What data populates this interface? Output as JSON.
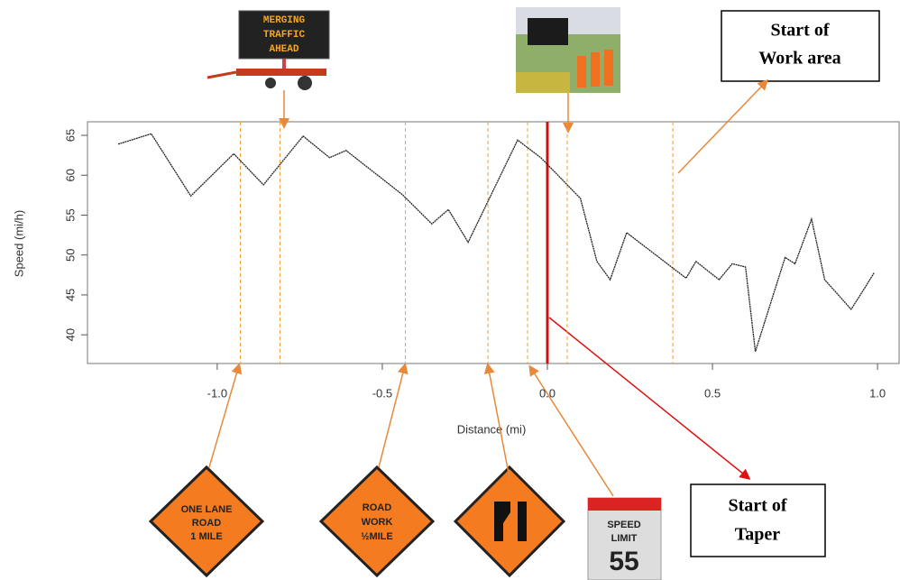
{
  "chart_data": {
    "type": "line",
    "x_label": "Distance (mi)",
    "y_label": "Speed (mi/h)",
    "xlim": [
      -1.393,
      1.068
    ],
    "ylim": [
      36.4,
      66.7
    ],
    "xticks": [
      {
        "value": -1,
        "label": "-1.0"
      },
      -0.5,
      {
        "value": 0,
        "label": "0.0"
      },
      0.5,
      {
        "value": 1,
        "label": "1.0"
      }
    ],
    "yticks": [
      40,
      45,
      50,
      55,
      60,
      65
    ],
    "x": [
      -1.3,
      -1.2,
      -1.08,
      -0.95,
      -0.86,
      -0.74,
      -0.66,
      -0.61,
      -0.44,
      -0.35,
      -0.3,
      -0.24,
      -0.09,
      -0.02,
      0.1,
      0.15,
      0.19,
      0.24,
      0.42,
      0.45,
      0.52,
      0.56,
      0.6,
      0.63,
      0.72,
      0.75,
      0.8,
      0.84,
      0.92,
      0.96,
      0.99
    ],
    "series": [
      {
        "color": "#222222",
        "values": [
          63.9,
          65.2,
          57.4,
          62.7,
          58.8,
          64.9,
          62.2,
          63.1,
          57.6,
          53.9,
          55.7,
          51.6,
          64.4,
          62.2,
          57.1,
          49.2,
          46.9,
          52.8,
          47.1,
          49.2,
          46.9,
          48.9,
          48.5,
          37.9,
          49.7,
          48.9,
          54.5,
          46.9,
          43.2,
          45.8,
          47.8
        ]
      }
    ],
    "sign_positions": [
      -0.93,
      -0.81,
      -0.43,
      -0.18,
      -0.06,
      0.06,
      0.38
    ],
    "sign_line_color": "#f0a030",
    "taper_start": 0,
    "taper_color": "#cc1111",
    "annotations": {
      "work_area": [
        "Start of",
        "Work area"
      ],
      "taper": [
        "Start of",
        "Taper"
      ],
      "vms": [
        "MERGING",
        "TRAFFIC",
        "AHEAD"
      ],
      "one_lane": [
        "ONE LANE",
        "ROAD",
        "1 MILE"
      ],
      "road_work": [
        "ROAD",
        "WORK",
        "½MILE"
      ],
      "speed": [
        "SPEED",
        "LIMIT",
        "55"
      ]
    }
  }
}
